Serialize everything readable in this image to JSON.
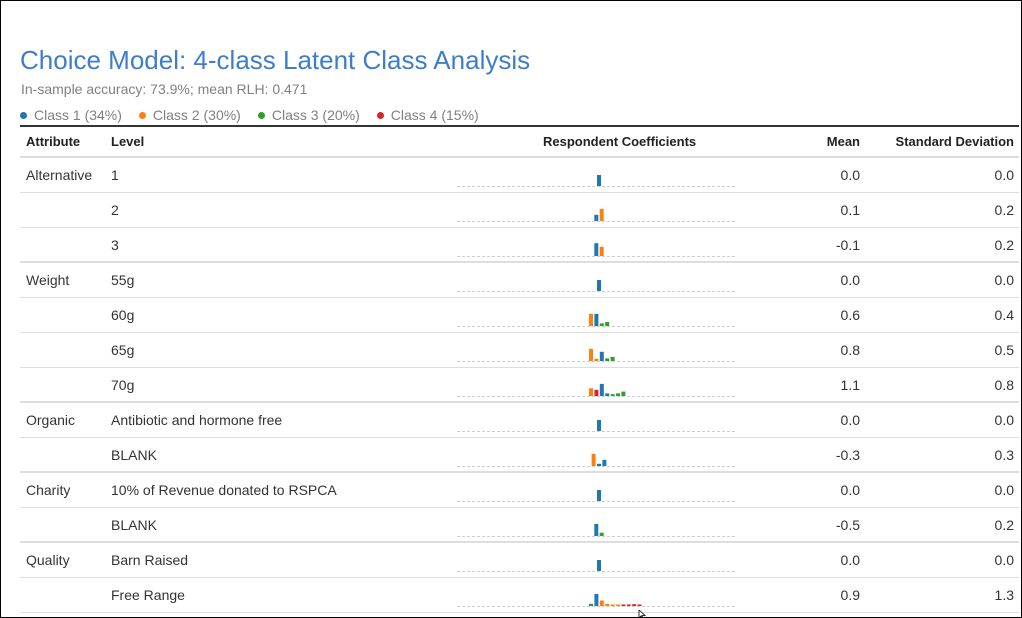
{
  "title": "Choice Model: 4-class Latent Class Analysis",
  "subtitle": "In-sample accuracy: 73.9%; mean RLH: 0.471",
  "legend": [
    {
      "label": "Class 1 (34%)",
      "color": "#1f77b4"
    },
    {
      "label": "Class 2 (30%)",
      "color": "#ff7f0e"
    },
    {
      "label": "Class 3 (20%)",
      "color": "#2ca02c"
    },
    {
      "label": "Class 4 (15%)",
      "color": "#d62728"
    }
  ],
  "headers": {
    "attribute": "Attribute",
    "level": "Level",
    "coefficients": "Respondent Coefficients",
    "mean": "Mean",
    "sd": "Standard Deviation"
  },
  "rows": [
    {
      "attribute": "Alternative",
      "level": "1",
      "mean": "0.0",
      "sd": "0.0",
      "coefficient_bars": [
        [
          1,
          0.5
        ]
      ]
    },
    {
      "attribute": "",
      "level": "2",
      "mean": "0.1",
      "sd": "0.2",
      "coefficient_bars": [
        [
          1,
          0.28
        ],
        [
          2,
          0.55
        ]
      ]
    },
    {
      "attribute": "",
      "level": "3",
      "mean": "-0.1",
      "sd": "0.2",
      "coefficient_bars": [
        [
          1,
          0.58
        ],
        [
          2,
          0.42
        ]
      ]
    },
    {
      "attribute": "Weight",
      "level": "55g",
      "mean": "0.0",
      "sd": "0.0",
      "coefficient_bars": [
        [
          1,
          0.5
        ]
      ]
    },
    {
      "attribute": "",
      "level": "60g",
      "mean": "0.6",
      "sd": "0.4",
      "coefficient_bars": [
        [
          2,
          0.55
        ],
        [
          1,
          0.55
        ],
        [
          3,
          0.12
        ],
        [
          3,
          0.18
        ]
      ]
    },
    {
      "attribute": "",
      "level": "65g",
      "mean": "0.8",
      "sd": "0.5",
      "coefficient_bars": [
        [
          2,
          0.55
        ],
        [
          2,
          0.1
        ],
        [
          1,
          0.42
        ],
        [
          3,
          0.12
        ],
        [
          3,
          0.18
        ]
      ]
    },
    {
      "attribute": "",
      "level": "70g",
      "mean": "1.1",
      "sd": "0.8",
      "coefficient_bars": [
        [
          2,
          0.35
        ],
        [
          4,
          0.28
        ],
        [
          1,
          0.55
        ],
        [
          1,
          0.12
        ],
        [
          3,
          0.08
        ],
        [
          3,
          0.12
        ],
        [
          3,
          0.2
        ]
      ]
    },
    {
      "attribute": "Organic",
      "level": "Antibiotic and hormone free",
      "mean": "0.0",
      "sd": "0.0",
      "coefficient_bars": [
        [
          1,
          0.5
        ]
      ]
    },
    {
      "attribute": "",
      "level": "BLANK",
      "mean": "-0.3",
      "sd": "0.3",
      "coefficient_bars": [
        [
          2,
          0.55
        ],
        [
          1,
          0.1
        ],
        [
          1,
          0.28
        ]
      ]
    },
    {
      "attribute": "Charity",
      "level": "10% of Revenue donated to RSPCA",
      "mean": "0.0",
      "sd": "0.0",
      "coefficient_bars": [
        [
          1,
          0.5
        ]
      ]
    },
    {
      "attribute": "",
      "level": "BLANK",
      "mean": "-0.5",
      "sd": "0.2",
      "coefficient_bars": [
        [
          1,
          0.55
        ],
        [
          3,
          0.15
        ]
      ]
    },
    {
      "attribute": "Quality",
      "level": "Barn Raised",
      "mean": "0.0",
      "sd": "0.0",
      "coefficient_bars": [
        [
          1,
          0.5
        ]
      ]
    },
    {
      "attribute": "",
      "level": "Free Range",
      "mean": "0.9",
      "sd": "1.3",
      "coefficient_bars": [
        [
          3,
          0.1
        ],
        [
          1,
          0.55
        ],
        [
          2,
          0.25
        ],
        [
          2,
          0.1
        ],
        [
          2,
          0.05
        ],
        [
          2,
          0.04
        ],
        [
          4,
          0.04
        ],
        [
          4,
          0.06
        ],
        [
          4,
          0.08
        ],
        [
          4,
          0.06
        ]
      ]
    }
  ]
}
